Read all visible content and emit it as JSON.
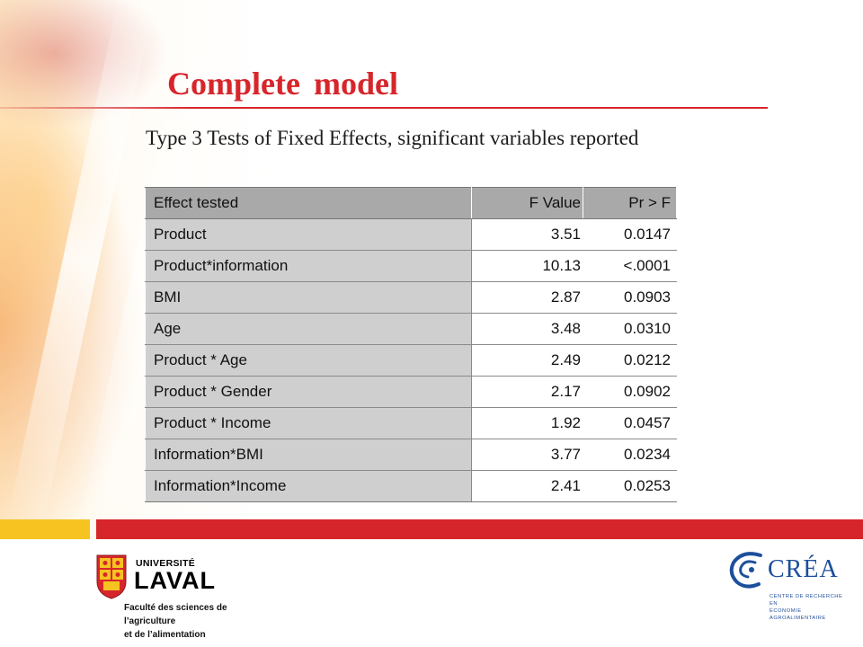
{
  "slide": {
    "title": "Complete model",
    "subtitle": "Type 3 Tests of Fixed Effects, significant variables reported"
  },
  "table": {
    "headers": [
      "Effect tested",
      "F Value",
      "Pr > F"
    ],
    "rows": [
      [
        "Product",
        "3.51",
        "0.0147"
      ],
      [
        "Product*information",
        "10.13",
        "<.0001"
      ],
      [
        "BMI",
        "2.87",
        "0.0903"
      ],
      [
        "Age",
        "3.48",
        "0.0310"
      ],
      [
        "Product * Age",
        "2.49",
        "0.0212"
      ],
      [
        "Product * Gender",
        "2.17",
        "0.0902"
      ],
      [
        "Product * Income",
        "1.92",
        "0.0457"
      ],
      [
        "Information*BMI",
        "3.77",
        "0.0234"
      ],
      [
        "Information*Income",
        "2.41",
        "0.0253"
      ]
    ]
  },
  "logos": {
    "laval": {
      "line1": "UNIVERSITÉ",
      "line2": "LAVAL",
      "faculty_line1": "Faculté des sciences de l’agriculture",
      "faculty_line2": "et de l’alimentation"
    },
    "crea": {
      "name": "CRÉA",
      "sub_line1": "CENTRE DE RECHERCHE EN",
      "sub_line2": "ÉCONOMIE AGROALIMENTAIRE"
    }
  },
  "colors": {
    "accent_red": "#d7262b",
    "accent_yellow": "#f6c321",
    "header_gray": "#a9a9a9",
    "first_col_gray": "#cfcfcf",
    "crea_blue": "#1d4f9b"
  }
}
